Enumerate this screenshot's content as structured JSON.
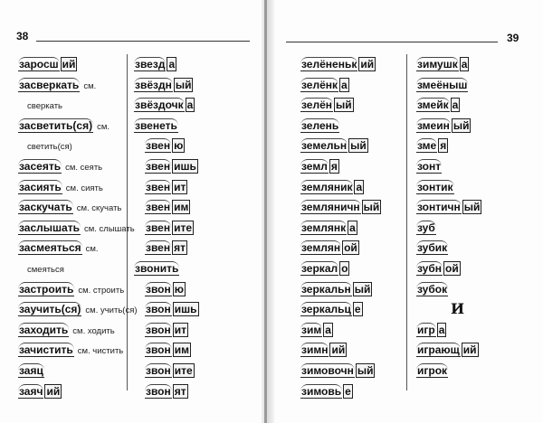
{
  "left_page": {
    "number": "38",
    "col1": [
      {
        "stem": "заросш",
        "ending": "ий"
      },
      {
        "stem": "засверкать",
        "note": "см."
      },
      {
        "plain": "сверкать"
      },
      {
        "stem": "засветить(ся)",
        "note": "см."
      },
      {
        "plain": "светить(ся)"
      },
      {
        "stem": "засеять",
        "note": "см. сеять"
      },
      {
        "stem": "засиять",
        "note": "см. сиять"
      },
      {
        "stem": "заскучать",
        "note": "см. скучать"
      },
      {
        "stem": "заслышать",
        "note": "см. слышать"
      },
      {
        "stem": "засмеяться",
        "note": "см."
      },
      {
        "plain": "смеяться"
      },
      {
        "stem": "застроить",
        "note": "см. строить"
      },
      {
        "stem": "заучить(ся)",
        "note": "см. учить(ся)"
      },
      {
        "stem": "заходить",
        "note": "см. ходить"
      },
      {
        "stem": "зачистить",
        "note": "см. чистить"
      },
      {
        "stem": "заяц"
      },
      {
        "stem": "заяч",
        "ending": "ий"
      }
    ],
    "col2": [
      {
        "stem": "звезд",
        "ending": "а"
      },
      {
        "stem": "звёздн",
        "ending": "ый"
      },
      {
        "stem": "звёздочк",
        "ending": "а"
      },
      {
        "stem": "звенеть"
      },
      {
        "stem": "звен",
        "ending": "ю",
        "indent": true
      },
      {
        "stem": "звен",
        "ending": "ишь",
        "indent": true
      },
      {
        "stem": "звен",
        "ending": "ит",
        "indent": true
      },
      {
        "stem": "звен",
        "ending": "им",
        "indent": true
      },
      {
        "stem": "звен",
        "ending": "ите",
        "indent": true
      },
      {
        "stem": "звен",
        "ending": "ят",
        "indent": true
      },
      {
        "stem": "звонить"
      },
      {
        "stem": "звон",
        "ending": "ю",
        "indent": true
      },
      {
        "stem": "звон",
        "ending": "ишь",
        "indent": true
      },
      {
        "stem": "звон",
        "ending": "ит",
        "indent": true
      },
      {
        "stem": "звон",
        "ending": "им",
        "indent": true
      },
      {
        "stem": "звон",
        "ending": "ите",
        "indent": true
      },
      {
        "stem": "звон",
        "ending": "ят",
        "indent": true
      }
    ]
  },
  "right_page": {
    "number": "39",
    "col1": [
      {
        "stem": "зелёненьк",
        "ending": "ий"
      },
      {
        "stem": "зелёнк",
        "ending": "а"
      },
      {
        "stem": "зелён",
        "ending": "ый"
      },
      {
        "stem": "зелень"
      },
      {
        "stem": "земельн",
        "ending": "ый"
      },
      {
        "stem": "земл",
        "ending": "я"
      },
      {
        "stem": "земляник",
        "ending": "а"
      },
      {
        "stem": "земляничн",
        "ending": "ый"
      },
      {
        "stem": "землянк",
        "ending": "а"
      },
      {
        "stem": "землян",
        "ending": "ой"
      },
      {
        "stem": "зеркал",
        "ending": "о"
      },
      {
        "stem": "зеркальн",
        "ending": "ый"
      },
      {
        "stem": "зеркальц",
        "ending": "е"
      },
      {
        "stem": "зим",
        "ending": "а"
      },
      {
        "stem": "зимн",
        "ending": "ий"
      },
      {
        "stem": "зимовочн",
        "ending": "ый"
      },
      {
        "stem": "зимовь",
        "ending": "е"
      }
    ],
    "col2": [
      {
        "stem": "зимушк",
        "ending": "а"
      },
      {
        "stem": "змеёныш"
      },
      {
        "stem": "змейк",
        "ending": "а"
      },
      {
        "stem": "змеин",
        "ending": "ый"
      },
      {
        "stem": "зме",
        "ending": "я"
      },
      {
        "stem": "зонт"
      },
      {
        "stem": "зонтик"
      },
      {
        "stem": "зонтичн",
        "ending": "ый"
      },
      {
        "stem": "зуб"
      },
      {
        "stem": "зубик"
      },
      {
        "stem": "зубн",
        "ending": "ой"
      },
      {
        "stem": "зубок"
      },
      {
        "letter": "И"
      },
      {
        "stem": "игр",
        "ending": "а"
      },
      {
        "stem": "играющ",
        "ending": "ий"
      },
      {
        "stem": "игрок"
      }
    ]
  }
}
